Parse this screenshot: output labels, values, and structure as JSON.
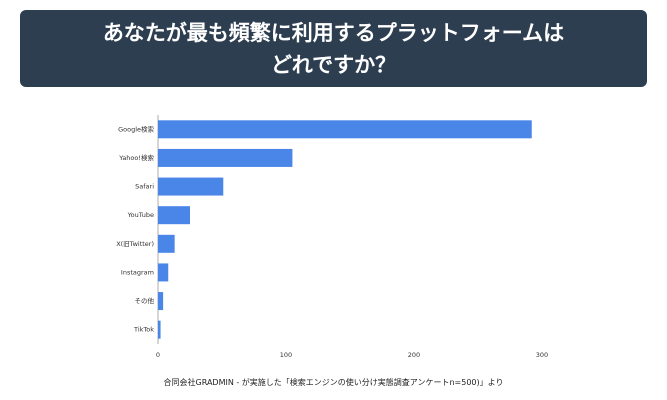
{
  "chart_data": {
    "type": "bar",
    "orientation": "horizontal",
    "title": "あなたが最も頻繁に利用するプラットフォームは\nどれですか？",
    "categories": [
      "Google検索",
      "Yahoo!検索",
      "Safari",
      "YouTube",
      "X(旧Twitter)",
      "Instagram",
      "その他",
      "TikTok"
    ],
    "values": [
      292,
      105,
      51,
      25,
      13,
      8,
      4,
      2
    ],
    "color": "#4a86e8",
    "xlim": [
      0,
      300
    ],
    "xticks": [
      0,
      100,
      200,
      300
    ],
    "grid": false,
    "source": "合同会社GRADMIN - が実施した「検索エンジンの使い分け実態調査アンケートn=500)」より"
  }
}
